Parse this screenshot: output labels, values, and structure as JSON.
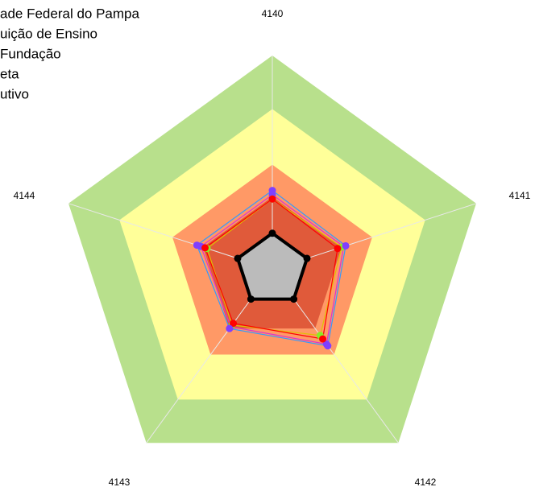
{
  "chart_data": {
    "type": "radar",
    "categories": [
      "4140",
      "4141",
      "4142",
      "4143",
      "4144"
    ],
    "rlim": [
      0,
      100
    ],
    "bands": [
      {
        "value": 100,
        "color": "#b8e08c"
      },
      {
        "value": 75,
        "color": "#ffff99"
      },
      {
        "value": 49,
        "color": "#ff9966"
      },
      {
        "value": 34,
        "color": "#e05a3a"
      }
    ],
    "series": [
      {
        "name": "ade Federal do Pampa",
        "color": "#3399ff",
        "marker_color": "#7f3fff",
        "values": [
          37,
          36,
          44,
          34,
          37
        ]
      },
      {
        "name": "uição de Ensino",
        "color": "#ff0000",
        "marker_color": "#ff0000",
        "values": [
          33,
          32,
          40,
          31,
          33
        ]
      },
      {
        "name": "Fundação",
        "color": "#e0c000",
        "marker_color": "#88ee22",
        "values": [
          33,
          34,
          38,
          32,
          32
        ]
      },
      {
        "name": "eta",
        "color": "#dd33cc",
        "marker_color": "#7f3fff",
        "values": [
          35,
          35,
          43,
          33,
          35
        ]
      },
      {
        "name": "utivo",
        "color": "#000000",
        "marker_color": "#000000",
        "fill": "#bbbbbb",
        "values": [
          17,
          17,
          17,
          17,
          17
        ]
      }
    ]
  }
}
